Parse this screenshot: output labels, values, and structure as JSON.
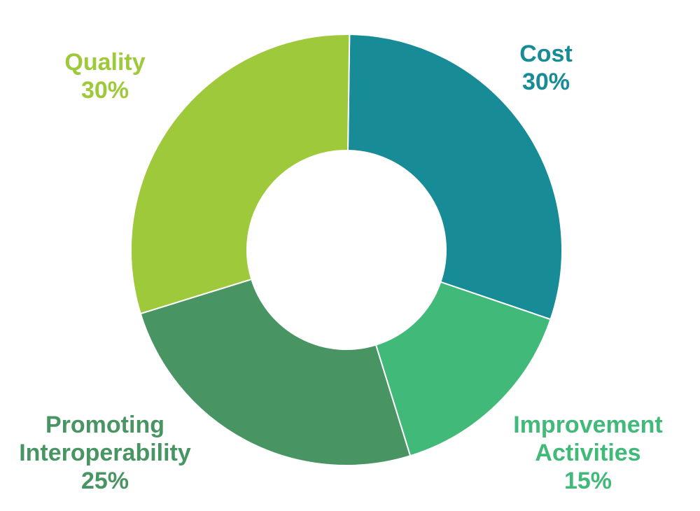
{
  "chart_data": {
    "type": "pie",
    "donut": true,
    "categories": [
      "Cost",
      "Improvement Activities",
      "Promoting Interoperability",
      "Quality"
    ],
    "values": [
      30,
      15,
      25,
      30
    ],
    "labels": [
      {
        "lines": [
          "Cost"
        ],
        "percent": "30%"
      },
      {
        "lines": [
          "Improvement",
          "Activities"
        ],
        "percent": "15%"
      },
      {
        "lines": [
          "Promoting",
          "Interoperability"
        ],
        "percent": "25%"
      },
      {
        "lines": [
          "Quality"
        ],
        "percent": "30%"
      }
    ],
    "colors": [
      "#178c96",
      "#41b978",
      "#489563",
      "#9ec93b"
    ],
    "title": "",
    "legend": "none"
  }
}
